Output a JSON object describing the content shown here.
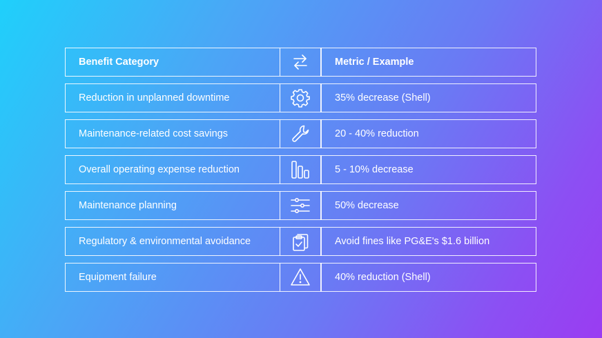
{
  "header": {
    "col1": "Benefit Category",
    "icon": "swap-arrows-icon",
    "col3": "Metric / Example"
  },
  "rows": [
    {
      "category": "Reduction in unplanned downtime",
      "icon": "gear-icon",
      "metric": "35% decrease (Shell)"
    },
    {
      "category": "Maintenance-related cost savings",
      "icon": "wrench-icon",
      "metric": "20 - 40% reduction"
    },
    {
      "category": "Overall operating expense reduction",
      "icon": "bar-chart-icon",
      "metric": "5 - 10% decrease"
    },
    {
      "category": "Maintenance planning",
      "icon": "sliders-icon",
      "metric": "50% decrease"
    },
    {
      "category": "Regulatory & environmental avoidance",
      "icon": "clipboard-check-icon",
      "metric": "Avoid fines like PG&E's $1.6 billion"
    },
    {
      "category": "Equipment failure",
      "icon": "warning-icon",
      "metric": "40% reduction (Shell)"
    }
  ]
}
